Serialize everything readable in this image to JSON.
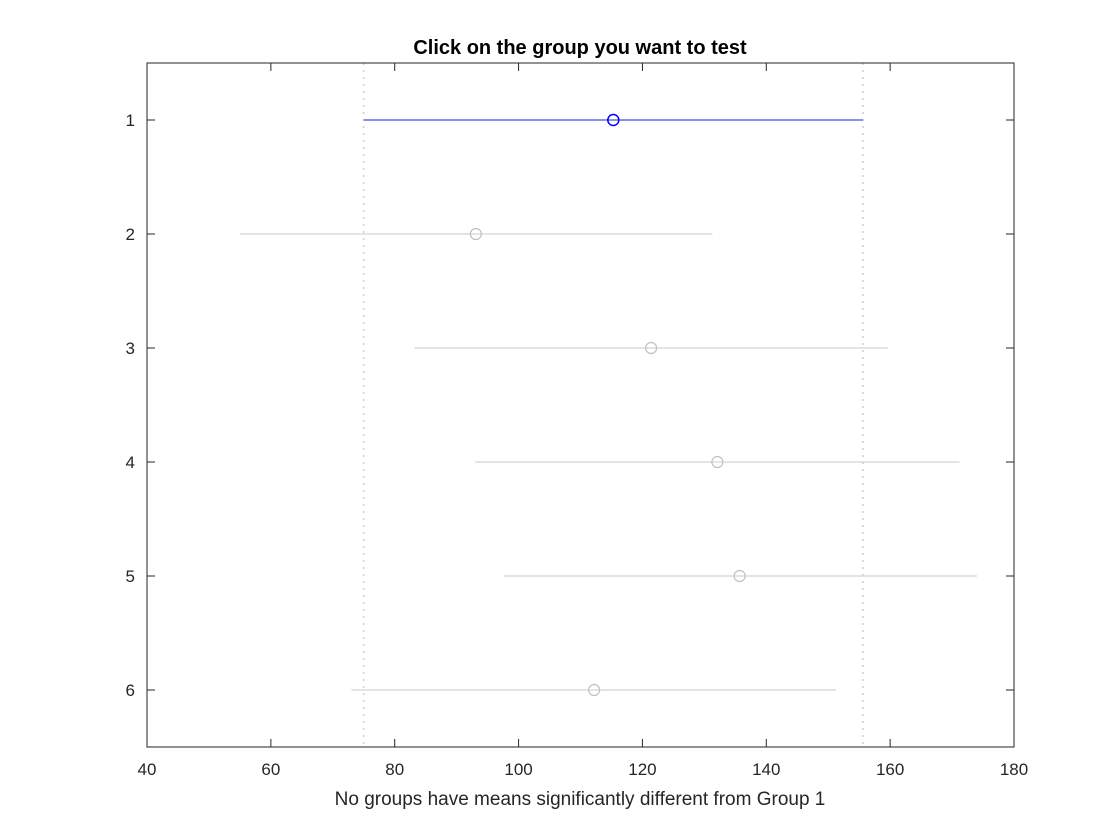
{
  "chart_data": {
    "type": "multiple-comparison-interval",
    "title": "Click on the group you want to test",
    "xlabel": "No groups have means significantly different from Group 1",
    "ylabel": "",
    "xlim": [
      40,
      180
    ],
    "xticks": [
      40,
      60,
      80,
      100,
      120,
      140,
      160,
      180
    ],
    "ylim": [
      0.5,
      6.5
    ],
    "yticks": [
      1,
      2,
      3,
      4,
      5,
      6
    ],
    "y_reversed": true,
    "grid": false,
    "legend": "none",
    "groups": [
      {
        "label": "1",
        "mean": 115.3,
        "lower": 75.0,
        "upper": 155.6,
        "selected": true
      },
      {
        "label": "2",
        "mean": 93.1,
        "lower": 55.0,
        "upper": 131.3,
        "selected": false
      },
      {
        "label": "3",
        "mean": 121.4,
        "lower": 83.2,
        "upper": 159.6,
        "selected": false
      },
      {
        "label": "4",
        "mean": 132.1,
        "lower": 93.0,
        "upper": 171.2,
        "selected": false
      },
      {
        "label": "5",
        "mean": 135.7,
        "lower": 97.6,
        "upper": 174.0,
        "selected": false
      },
      {
        "label": "6",
        "mean": 112.2,
        "lower": 73.0,
        "upper": 151.3,
        "selected": false
      }
    ],
    "reference_lines": [
      75.0,
      155.6
    ],
    "colors": {
      "selected": "#0000ff",
      "selected_line": "#6a6ae8",
      "other": "#c0c0c0",
      "other_line": "#d4d4d4",
      "reference": "#d8d8d8",
      "axis": "#262626"
    }
  }
}
